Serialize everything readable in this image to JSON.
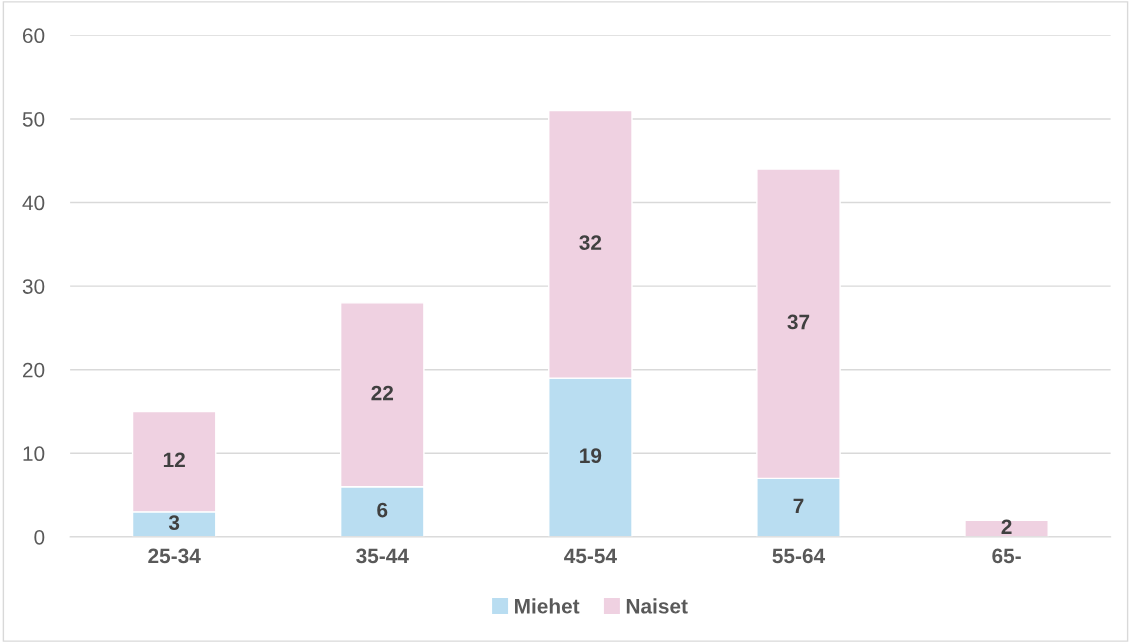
{
  "chart_data": {
    "type": "bar",
    "stacked": true,
    "categories": [
      "25-34",
      "35-44",
      "45-54",
      "55-64",
      "65-"
    ],
    "series": [
      {
        "name": "Miehet",
        "color": "#b9ddf1",
        "values": [
          3,
          6,
          19,
          7,
          null
        ]
      },
      {
        "name": "Naiset",
        "color": "#efd1e1",
        "values": [
          12,
          22,
          32,
          37,
          2
        ]
      }
    ],
    "ylim": [
      0,
      60
    ],
    "yticks": [
      0,
      10,
      20,
      30,
      40,
      50,
      60
    ],
    "grid": "y",
    "legend": "bottom",
    "data_labels": true
  }
}
